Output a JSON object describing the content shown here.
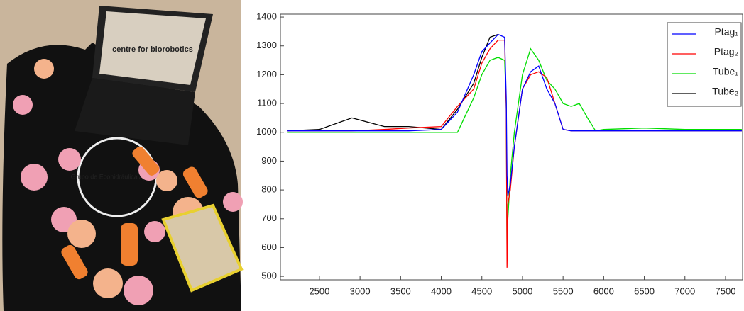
{
  "photo_texts": [
    "centre for biorobotics",
    "Grupo de Ecohidráulica Aplicada"
  ],
  "chart_data": {
    "type": "line",
    "x": [
      2100,
      2500,
      2900,
      3300,
      3600,
      4000,
      4200,
      4400,
      4500,
      4600,
      4700,
      4780,
      4800,
      4810,
      4820,
      4850,
      4900,
      5000,
      5100,
      5200,
      5300,
      5400,
      5500,
      5600,
      5700,
      5800,
      5900,
      6000,
      6500,
      7000,
      7700
    ],
    "series": [
      {
        "name": "Ptag₁",
        "color": "#0000ff",
        "values": [
          1005,
          1005,
          1005,
          1005,
          1005,
          1010,
          1070,
          1200,
          1280,
          1310,
          1340,
          1330,
          1120,
          850,
          780,
          820,
          950,
          1150,
          1210,
          1230,
          1150,
          1100,
          1010,
          1005,
          1005,
          1005,
          1005,
          1005,
          1005,
          1005,
          1005
        ]
      },
      {
        "name": "Ptag₂",
        "color": "#ff0000",
        "values": [
          1005,
          1005,
          1005,
          1010,
          1015,
          1020,
          1090,
          1150,
          1240,
          1290,
          1320,
          1320,
          1080,
          530,
          750,
          800,
          950,
          1150,
          1200,
          1210,
          1190,
          1100,
          1010,
          1005,
          1005,
          1005,
          1005,
          1005,
          1005,
          1005,
          1005
        ]
      },
      {
        "name": "Tube₁",
        "color": "#00dd00",
        "values": [
          1000,
          1000,
          1000,
          1000,
          1000,
          1000,
          1000,
          1120,
          1200,
          1250,
          1260,
          1250,
          1100,
          580,
          700,
          850,
          1000,
          1200,
          1290,
          1250,
          1180,
          1150,
          1100,
          1090,
          1100,
          1050,
          1005,
          1010,
          1015,
          1010,
          1010
        ]
      },
      {
        "name": "Tube₂",
        "color": "#000000",
        "values": [
          1005,
          1010,
          1050,
          1020,
          1020,
          1010,
          1080,
          1170,
          1260,
          1330,
          1340,
          null,
          null,
          null,
          null,
          null,
          null,
          null,
          null,
          null,
          null,
          null,
          null,
          null,
          null,
          null,
          null,
          null,
          null,
          null,
          null
        ]
      }
    ],
    "xlim": [
      2020,
      7710
    ],
    "ylim": [
      488,
      1410
    ],
    "xticks": [
      2500,
      3000,
      3500,
      4000,
      4500,
      5000,
      5500,
      6000,
      6500,
      7000,
      7500
    ],
    "yticks": [
      500,
      600,
      700,
      800,
      900,
      1000,
      1100,
      1200,
      1300,
      1400
    ],
    "grid": false,
    "legend": "northeast"
  }
}
